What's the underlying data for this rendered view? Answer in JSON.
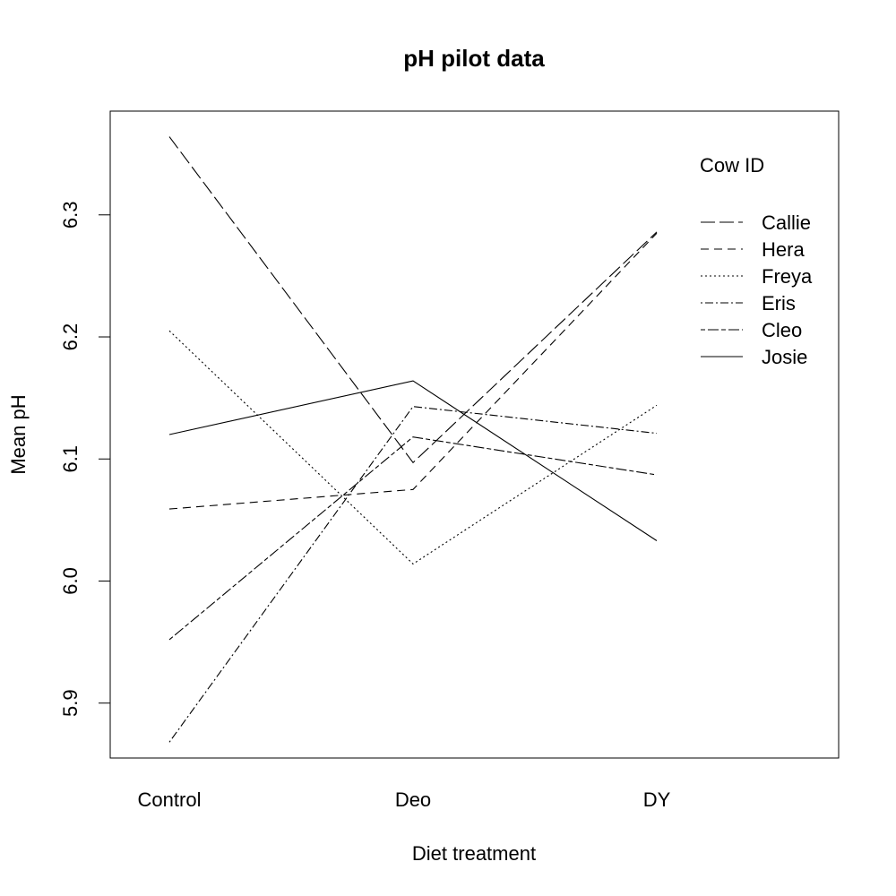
{
  "chart_data": {
    "type": "line",
    "title": "pH pilot data",
    "xlabel": "Diet treatment",
    "ylabel": "Mean pH",
    "categories": [
      "Control",
      "Deo",
      "DY"
    ],
    "ylim": [
      5.855,
      6.385
    ],
    "yticks": [
      "5.9",
      "6.0",
      "6.1",
      "6.2",
      "6.3"
    ],
    "grid": false,
    "legend": {
      "title": "Cow ID",
      "position": "top-right"
    },
    "series": [
      {
        "name": "Callie",
        "values": [
          6.364,
          6.097,
          6.286
        ],
        "dash": "longdash"
      },
      {
        "name": "Hera",
        "values": [
          6.059,
          6.075,
          6.285
        ],
        "dash": "dashed"
      },
      {
        "name": "Freya",
        "values": [
          6.205,
          6.014,
          6.144
        ],
        "dash": "dotted"
      },
      {
        "name": "Eris",
        "values": [
          5.868,
          6.143,
          6.121
        ],
        "dash": "dotdash"
      },
      {
        "name": "Cleo",
        "values": [
          5.952,
          6.118,
          6.087
        ],
        "dash": "twodash"
      },
      {
        "name": "Josie",
        "values": [
          6.12,
          6.164,
          6.033
        ],
        "dash": "solid"
      }
    ]
  }
}
